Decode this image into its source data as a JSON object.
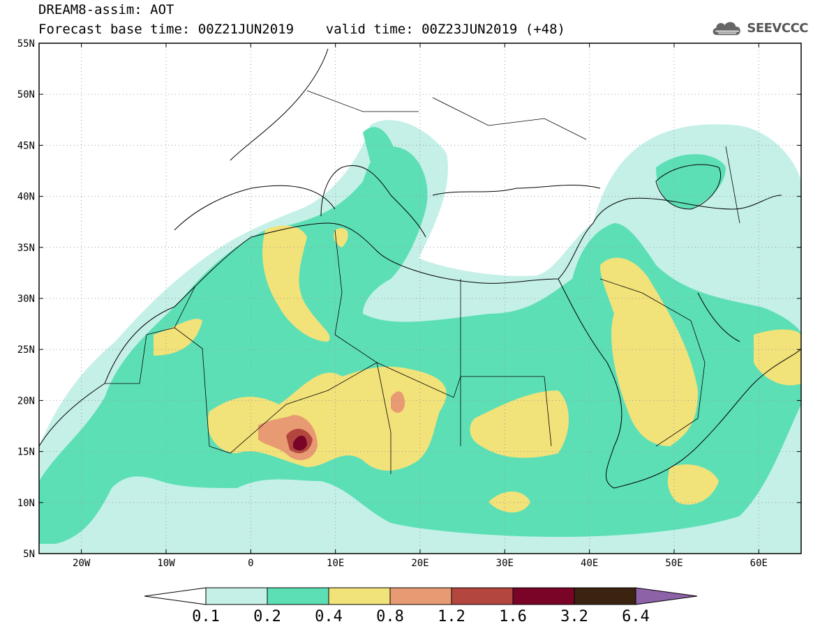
{
  "header": {
    "title_line1": "DREAM8-assim: AOT",
    "title_line2": "Forecast base time: 00Z21JUN2019    valid time: 00Z23JUN2019 (+48)",
    "logo_text": "SEEVCCC",
    "logo_icon": "cloud-icon"
  },
  "map": {
    "lon_range": [
      -25,
      65
    ],
    "lat_range": [
      5,
      55
    ],
    "lat_ticks": [
      "55N",
      "50N",
      "45N",
      "40N",
      "35N",
      "30N",
      "25N",
      "20N",
      "15N",
      "10N",
      "5N"
    ],
    "lon_ticks": [
      "20W",
      "10W",
      "0",
      "10E",
      "20E",
      "30E",
      "40E",
      "50E",
      "60E"
    ],
    "grid": "dotted",
    "ocean_color": "#ffffff",
    "border_color": "#000000"
  },
  "colorbar": {
    "labels": [
      "0.1",
      "0.2",
      "0.4",
      "0.8",
      "1.2",
      "1.6",
      "3.2",
      "6.4"
    ],
    "colors": [
      "#ffffff",
      "#c4f0e8",
      "#5ddfb6",
      "#f2e27a",
      "#e89a72",
      "#b3473f",
      "#7a0428",
      "#3a2410",
      "#8e62a7"
    ],
    "extend": "both"
  }
}
